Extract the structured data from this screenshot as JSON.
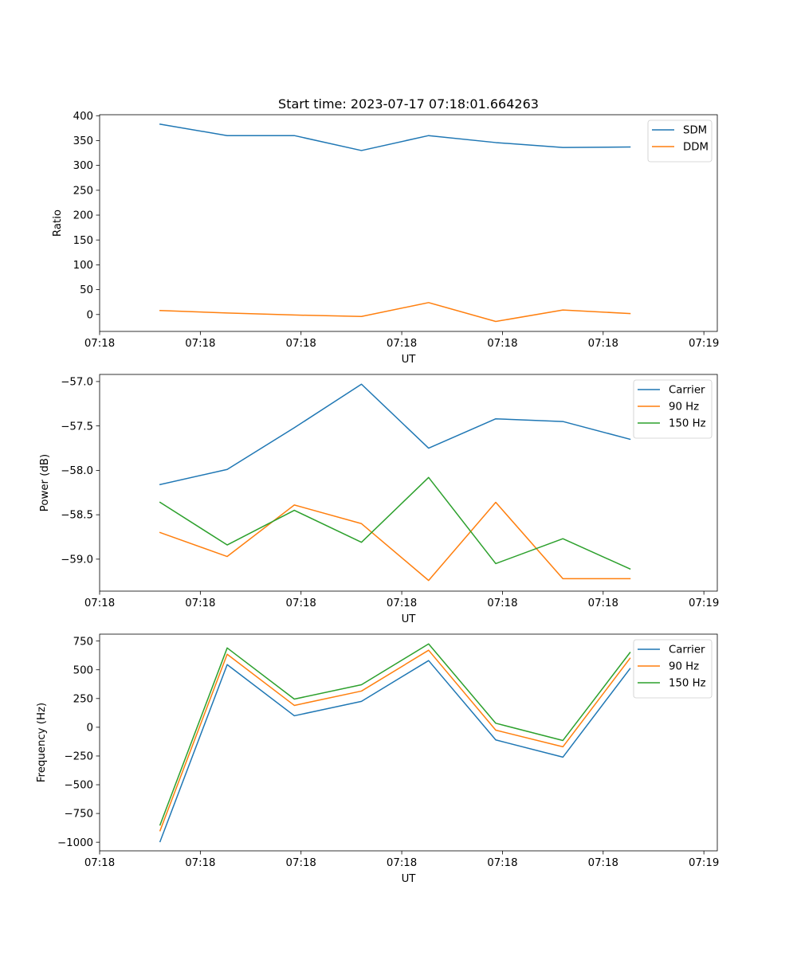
{
  "chart_data": {
    "title": "Start time: 2023-07-17 07:18:01.664263",
    "type": "line",
    "x": [
      0.9,
      1.9,
      2.9,
      3.9,
      4.9,
      5.9,
      6.9,
      7.9
    ],
    "xlim": [
      0,
      9.2
    ],
    "x_ticks": [
      {
        "value": 0,
        "label": "07:18"
      },
      {
        "value": 1.5,
        "label": "07:18"
      },
      {
        "value": 3,
        "label": "07:18"
      },
      {
        "value": 4.5,
        "label": "07:18"
      },
      {
        "value": 6,
        "label": "07:18"
      },
      {
        "value": 7.5,
        "label": "07:18"
      },
      {
        "value": 9,
        "label": "07:19"
      }
    ],
    "panels": [
      {
        "id": "ratio",
        "type": "line",
        "xlabel": "UT",
        "ylabel": "Ratio",
        "ylim": [
          -34,
          402
        ],
        "yticks": [
          0,
          50,
          100,
          150,
          200,
          250,
          300,
          350,
          400
        ],
        "ytick_labels": [
          "0",
          "50",
          "100",
          "150",
          "200",
          "250",
          "300",
          "350",
          "400"
        ],
        "legend_position": "top-right",
        "series": [
          {
            "name": "SDM",
            "color": "#1f77b4",
            "values": [
              383,
              360,
              360,
              330,
              360,
              346,
              336,
              337
            ]
          },
          {
            "name": "DDM",
            "color": "#ff7f0e",
            "values": [
              8,
              3,
              -1,
              -4,
              24,
              -14,
              9,
              2
            ]
          }
        ]
      },
      {
        "id": "power",
        "type": "line",
        "xlabel": "UT",
        "ylabel": "Power (dB)",
        "ylim": [
          -59.36,
          -56.92
        ],
        "yticks": [
          -59.0,
          -58.5,
          -58.0,
          -57.5,
          -57.0
        ],
        "ytick_labels": [
          "−59.0",
          "−58.5",
          "−58.0",
          "−57.5",
          "−57.0"
        ],
        "legend_position": "top-right",
        "series": [
          {
            "name": "Carrier",
            "color": "#1f77b4",
            "values": [
              -58.16,
              -57.99,
              -57.52,
              -57.03,
              -57.75,
              -57.42,
              -57.45,
              -57.65
            ]
          },
          {
            "name": "90 Hz",
            "color": "#ff7f0e",
            "values": [
              -58.7,
              -58.97,
              -58.39,
              -58.6,
              -59.24,
              -58.36,
              -59.22,
              -59.22
            ]
          },
          {
            "name": "150 Hz",
            "color": "#2ca02c",
            "values": [
              -58.36,
              -58.84,
              -58.45,
              -58.81,
              -58.08,
              -59.05,
              -58.77,
              -59.11
            ]
          }
        ]
      },
      {
        "id": "frequency",
        "type": "line",
        "xlabel": "UT",
        "ylabel": "Frequency (Hz)",
        "ylim": [
          -1075,
          810
        ],
        "yticks": [
          -1000,
          -750,
          -500,
          -250,
          0,
          250,
          500,
          750
        ],
        "ytick_labels": [
          "−1000",
          "−750",
          "−500",
          "−250",
          "0",
          "250",
          "500",
          "750"
        ],
        "legend_position": "top-right",
        "series": [
          {
            "name": "Carrier",
            "color": "#1f77b4",
            "values": [
              -995,
              545,
              100,
              225,
              580,
              -110,
              -260,
              510
            ]
          },
          {
            "name": "90 Hz",
            "color": "#ff7f0e",
            "values": [
              -900,
              635,
              190,
              315,
              670,
              -25,
              -170,
              600
            ]
          },
          {
            "name": "150 Hz",
            "color": "#2ca02c",
            "values": [
              -850,
              690,
              245,
              370,
              725,
              35,
              -115,
              650
            ]
          }
        ]
      }
    ]
  }
}
